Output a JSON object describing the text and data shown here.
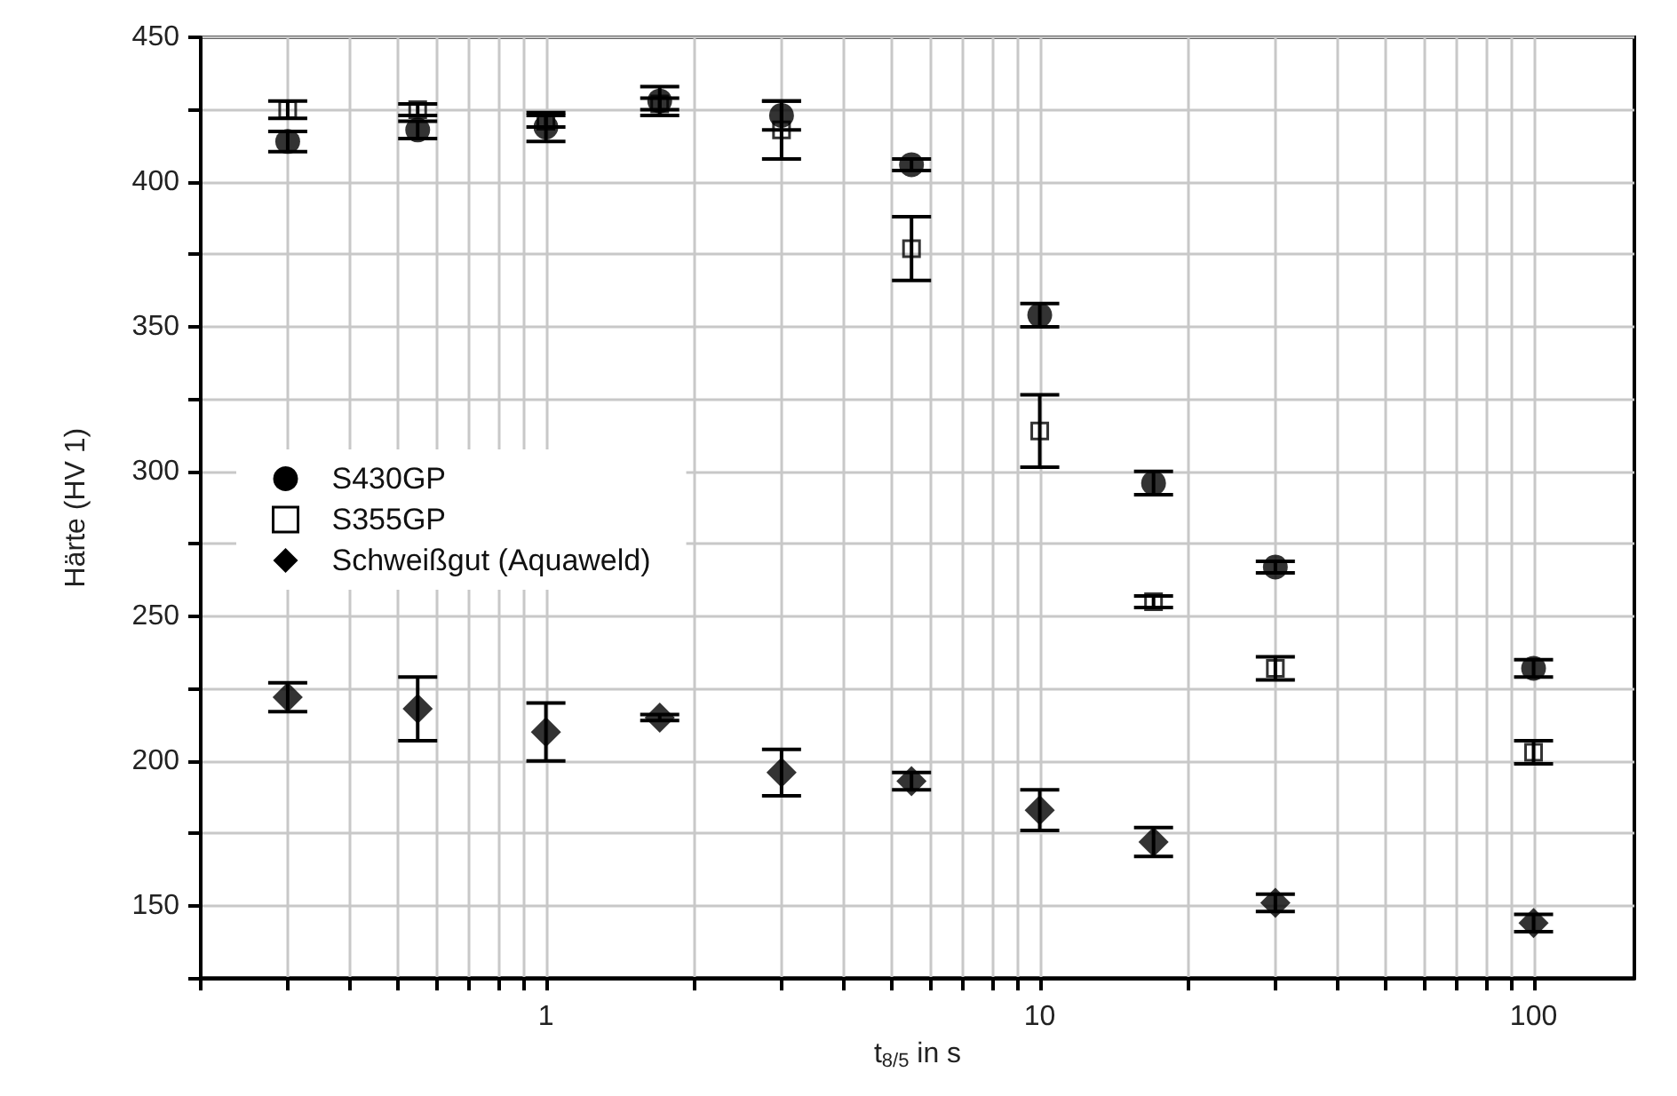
{
  "chart_data": {
    "type": "scatter",
    "xlabel": "t$_{8/5}$ in s",
    "ylabel": "Härte (HV 1)",
    "log": "x",
    "grid": true,
    "legend": "left",
    "x": [
      0.3,
      0.55,
      1,
      1.7,
      3,
      5.5,
      10,
      17,
      30,
      100
    ],
    "xlim": [
      0.2,
      160
    ],
    "xticks": [
      {
        "value": 0.2,
        "label": null
      },
      {
        "value": 0.3,
        "label": null
      },
      {
        "value": 0.4,
        "label": null
      },
      {
        "value": 0.5,
        "label": null
      },
      {
        "value": 0.6,
        "label": null
      },
      {
        "value": 0.7,
        "label": null
      },
      {
        "value": 0.8,
        "label": null
      },
      {
        "value": 0.9,
        "label": null
      },
      1,
      {
        "value": 2,
        "label": null
      },
      {
        "value": 3,
        "label": null
      },
      {
        "value": 4,
        "label": null
      },
      {
        "value": 5,
        "label": null
      },
      {
        "value": 6,
        "label": null
      },
      {
        "value": 7,
        "label": null
      },
      {
        "value": 8,
        "label": null
      },
      {
        "value": 9,
        "label": null
      },
      10,
      {
        "value": 20,
        "label": null
      },
      {
        "value": 30,
        "label": null
      },
      {
        "value": 40,
        "label": null
      },
      {
        "value": 50,
        "label": null
      },
      {
        "value": 60,
        "label": null
      },
      {
        "value": 70,
        "label": null
      },
      {
        "value": 80,
        "label": null
      },
      {
        "value": 90,
        "label": null
      },
      100
    ],
    "ylim": [
      125,
      450
    ],
    "yticks": [
      {
        "value": 125,
        "label": null
      },
      150,
      {
        "value": 175,
        "label": null
      },
      200,
      {
        "value": 225,
        "label": null
      },
      250,
      {
        "value": 275,
        "label": null
      },
      300,
      {
        "value": 325,
        "label": null
      },
      350,
      {
        "value": 375,
        "label": null
      },
      400,
      {
        "value": 425,
        "label": null
      },
      450
    ],
    "series": [
      {
        "name": "S430GP",
        "color": "#000000",
        "marker": "circle",
        "values": [
          414,
          418,
          419,
          428,
          423,
          406,
          354,
          296,
          267,
          232
        ],
        "errors": [
          3.5,
          3,
          5,
          5,
          5,
          2,
          4,
          4,
          2,
          3
        ]
      },
      {
        "name": "S355GP",
        "color": "#000000",
        "marker": "square",
        "values": [
          425,
          425,
          421,
          427,
          418,
          377,
          314,
          255,
          232,
          203
        ],
        "errors": [
          3,
          2,
          2,
          2,
          10,
          11,
          12.5,
          2,
          4,
          4
        ]
      },
      {
        "name": "Schweißgut (Aquaweld)",
        "color": "#000000",
        "marker": "diamond",
        "values": [
          222,
          218,
          210,
          215,
          196,
          193,
          183,
          172,
          151,
          144
        ],
        "errors": [
          5,
          11,
          10,
          1,
          8,
          3,
          7,
          5,
          3,
          3
        ]
      }
    ]
  }
}
